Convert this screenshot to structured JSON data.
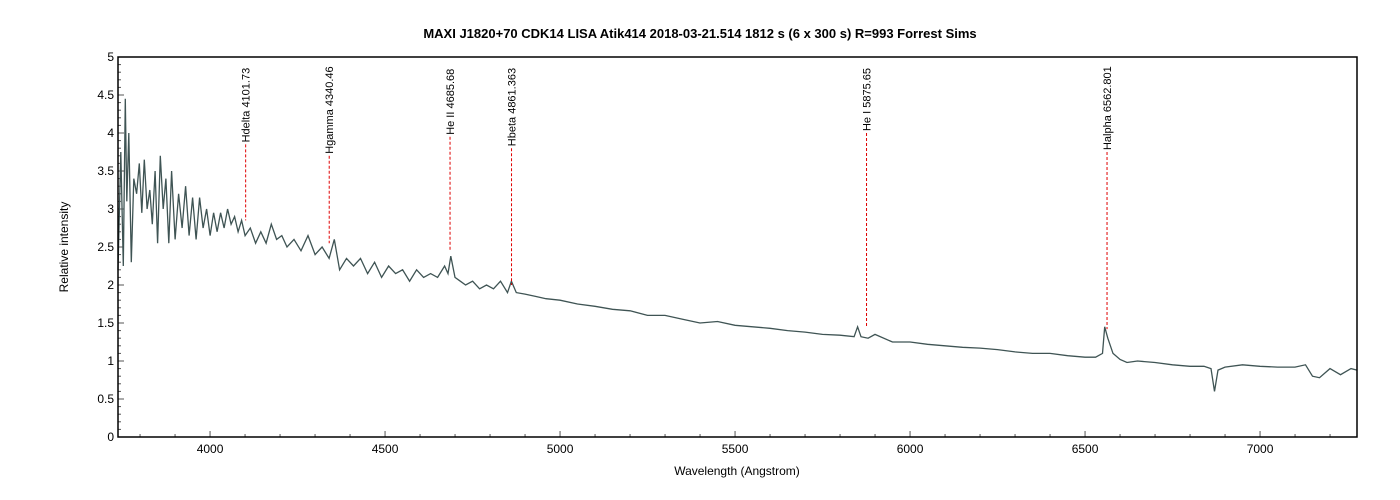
{
  "chart_data": {
    "type": "line",
    "title": "MAXI J1820+70 CDK14 LISA Atik414  2018-03-21.514   1812 s (6 x 300 s) R=993  Forrest Sims",
    "xlabel": "Wavelength (Angstrom)",
    "ylabel": "Relative intensity",
    "xlim": [
      3737,
      7277
    ],
    "ylim": [
      0,
      5
    ],
    "xticks": [
      4000,
      4500,
      5000,
      5500,
      6000,
      6500,
      7000
    ],
    "yticks": [
      0,
      0.5,
      1,
      1.5,
      2,
      2.5,
      3,
      3.5,
      4,
      4.5,
      5
    ],
    "grid": false,
    "line_color": "#3f5454",
    "marker_color": "#e00000",
    "series": [
      {
        "name": "spectrum",
        "x": [
          3737,
          3745,
          3752,
          3758,
          3762,
          3768,
          3775,
          3782,
          3790,
          3798,
          3805,
          3812,
          3820,
          3828,
          3835,
          3843,
          3850,
          3858,
          3866,
          3874,
          3882,
          3890,
          3900,
          3910,
          3920,
          3930,
          3940,
          3950,
          3960,
          3970,
          3980,
          3990,
          4000,
          4010,
          4020,
          4030,
          4040,
          4050,
          4060,
          4070,
          4080,
          4090,
          4100,
          4115,
          4130,
          4145,
          4160,
          4175,
          4190,
          4205,
          4220,
          4240,
          4260,
          4280,
          4300,
          4320,
          4340,
          4355,
          4370,
          4390,
          4410,
          4430,
          4450,
          4470,
          4490,
          4510,
          4530,
          4550,
          4570,
          4590,
          4610,
          4630,
          4650,
          4670,
          4680,
          4688,
          4700,
          4715,
          4730,
          4750,
          4770,
          4790,
          4810,
          4830,
          4850,
          4861,
          4875,
          4900,
          4930,
          4960,
          5000,
          5050,
          5100,
          5150,
          5200,
          5250,
          5300,
          5350,
          5400,
          5450,
          5500,
          5550,
          5600,
          5650,
          5700,
          5750,
          5800,
          5840,
          5850,
          5860,
          5880,
          5900,
          5950,
          6000,
          6050,
          6100,
          6150,
          6200,
          6250,
          6300,
          6350,
          6400,
          6450,
          6500,
          6530,
          6550,
          6556,
          6565,
          6580,
          6600,
          6620,
          6650,
          6700,
          6750,
          6800,
          6840,
          6860,
          6870,
          6880,
          6900,
          6950,
          7000,
          7050,
          7100,
          7130,
          7150,
          7170,
          7200,
          7230,
          7260,
          7277
        ],
        "y": [
          2.2,
          3.75,
          2.25,
          4.45,
          3.1,
          4.0,
          2.3,
          3.4,
          3.2,
          3.6,
          2.95,
          3.65,
          3.0,
          3.25,
          2.8,
          3.5,
          2.55,
          3.7,
          3.0,
          3.4,
          2.55,
          3.5,
          2.6,
          3.2,
          2.75,
          3.3,
          2.65,
          3.15,
          2.6,
          3.15,
          2.75,
          3.0,
          2.65,
          2.95,
          2.7,
          2.95,
          2.75,
          3.0,
          2.8,
          2.9,
          2.7,
          2.85,
          2.65,
          2.75,
          2.55,
          2.7,
          2.55,
          2.8,
          2.6,
          2.65,
          2.5,
          2.6,
          2.45,
          2.65,
          2.4,
          2.5,
          2.35,
          2.6,
          2.2,
          2.35,
          2.25,
          2.35,
          2.15,
          2.3,
          2.1,
          2.25,
          2.15,
          2.2,
          2.05,
          2.2,
          2.1,
          2.15,
          2.1,
          2.25,
          2.15,
          2.38,
          2.1,
          2.05,
          2.0,
          2.05,
          1.95,
          2.0,
          1.95,
          2.05,
          1.9,
          2.05,
          1.9,
          1.88,
          1.85,
          1.82,
          1.8,
          1.75,
          1.72,
          1.68,
          1.66,
          1.6,
          1.6,
          1.55,
          1.5,
          1.52,
          1.47,
          1.45,
          1.43,
          1.4,
          1.38,
          1.35,
          1.34,
          1.32,
          1.45,
          1.32,
          1.3,
          1.35,
          1.25,
          1.25,
          1.22,
          1.2,
          1.18,
          1.17,
          1.15,
          1.12,
          1.1,
          1.1,
          1.07,
          1.05,
          1.05,
          1.1,
          1.45,
          1.3,
          1.1,
          1.02,
          0.98,
          1.0,
          0.98,
          0.95,
          0.93,
          0.93,
          0.9,
          0.6,
          0.88,
          0.92,
          0.95,
          0.93,
          0.92,
          0.92,
          0.95,
          0.8,
          0.78,
          0.9,
          0.82,
          0.9,
          0.88
        ]
      }
    ],
    "line_markers": [
      {
        "label": "Hdelta 4101.73",
        "x": 4101.73,
        "y_top": 3.85,
        "y_bottom": 2.85
      },
      {
        "label": "Hgamma 4340.46",
        "x": 4340.46,
        "y_top": 3.7,
        "y_bottom": 2.55
      },
      {
        "label": "He II 4685.68",
        "x": 4685.68,
        "y_top": 3.95,
        "y_bottom": 2.45
      },
      {
        "label": "Hbeta 4861.363",
        "x": 4861.363,
        "y_top": 3.8,
        "y_bottom": 2.0
      },
      {
        "label": "He I 5875.65",
        "x": 5875.65,
        "y_top": 4.0,
        "y_bottom": 1.45
      },
      {
        "label": "Halpha 6562.801",
        "x": 6562.801,
        "y_top": 3.75,
        "y_bottom": 1.42
      }
    ]
  }
}
